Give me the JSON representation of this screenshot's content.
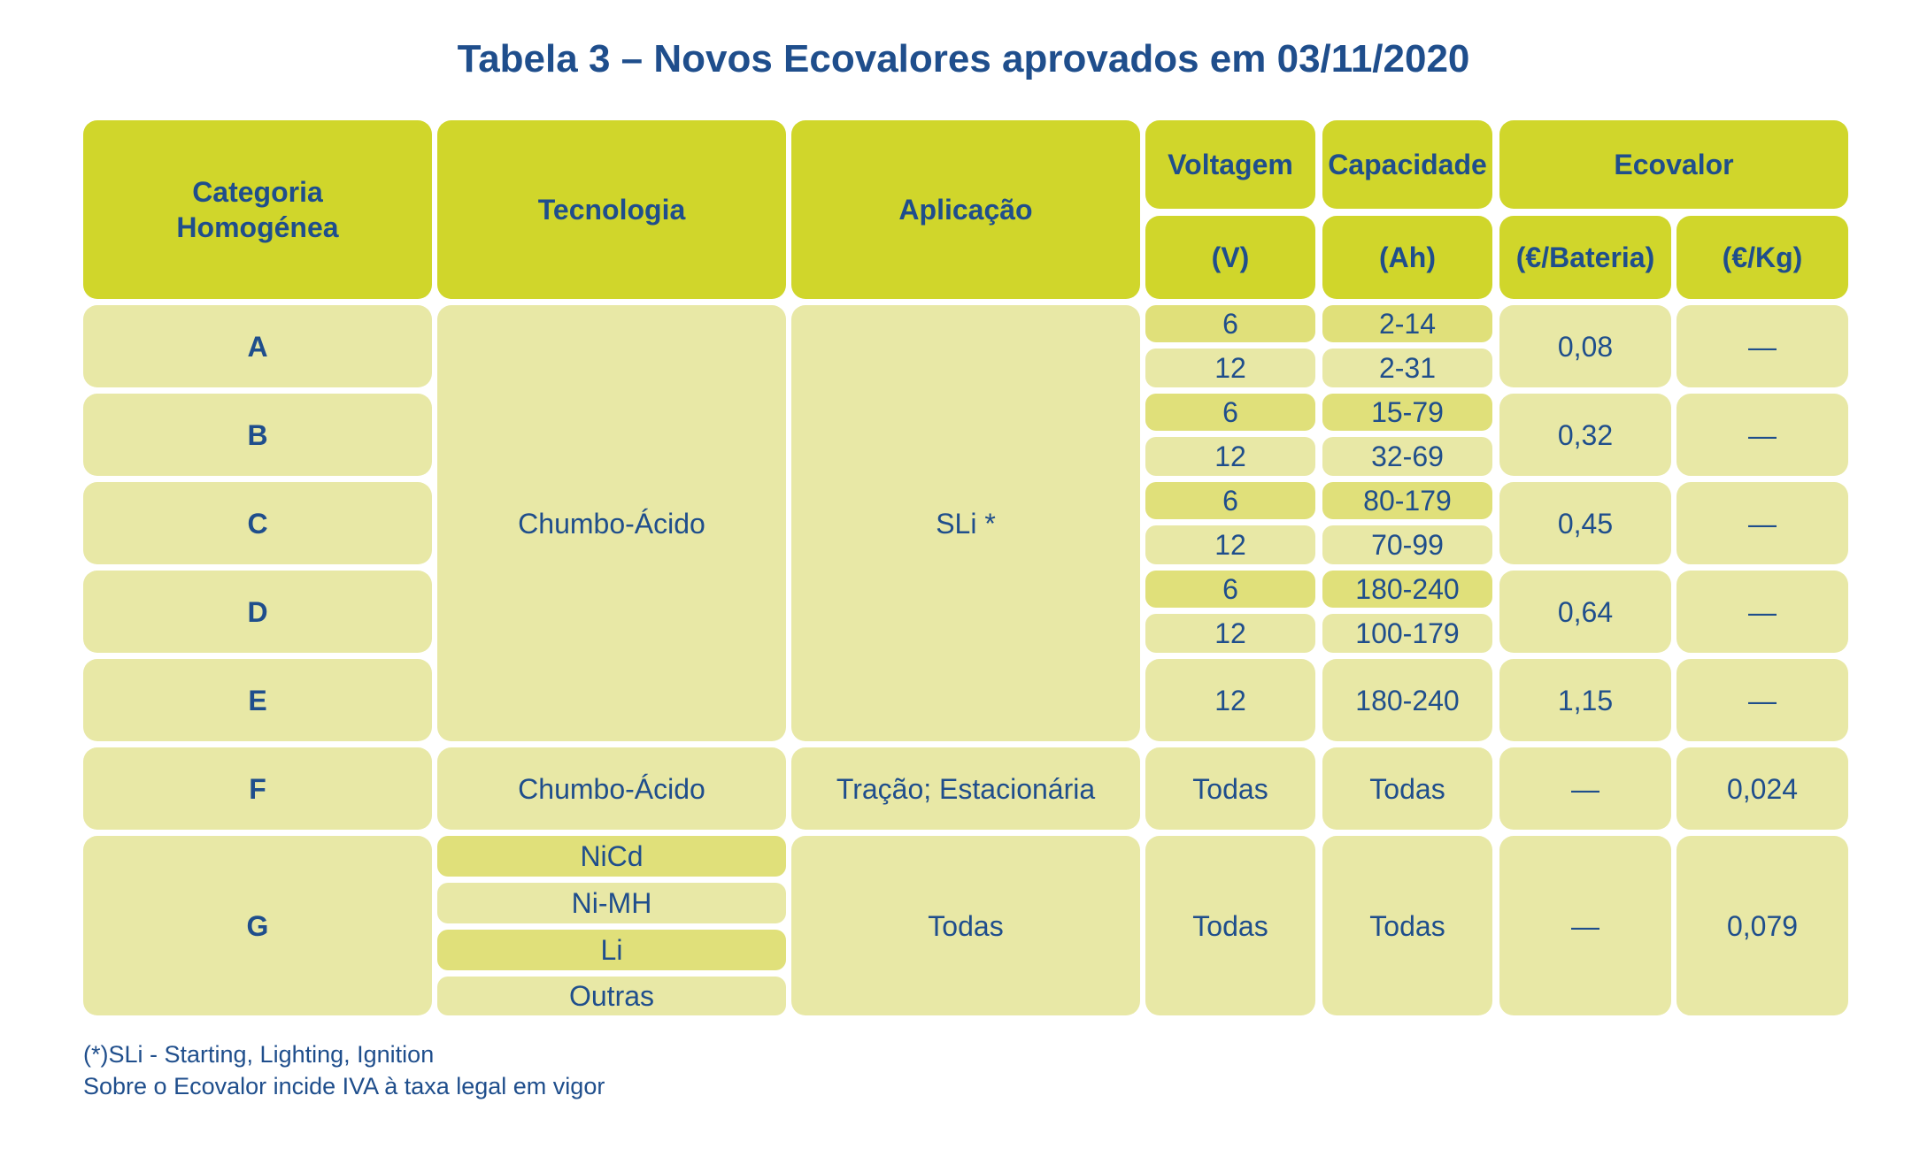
{
  "title": "Tabela 3 – Novos Ecovalores aprovados em 03/11/2020",
  "headers": {
    "categoria": "Categoria\nHomogénea",
    "tecnologia": "Tecnologia",
    "aplicacao": "Aplicação",
    "voltagem": "Voltagem",
    "voltagem_unit": "(V)",
    "capacidade": "Capacidade",
    "capacidade_unit": "(Ah)",
    "ecovalor": "Ecovalor",
    "ecovalor_bateria": "(€/Bateria)",
    "ecovalor_kg": "(€/Kg)"
  },
  "rows": {
    "A": {
      "cat": "A",
      "v1": "6",
      "c1": "2-14",
      "v2": "12",
      "c2": "2-31",
      "bat": "0,08",
      "kg": "—"
    },
    "B": {
      "cat": "B",
      "v1": "6",
      "c1": "15-79",
      "v2": "12",
      "c2": "32-69",
      "bat": "0,32",
      "kg": "—"
    },
    "C": {
      "cat": "C",
      "v1": "6",
      "c1": "80-179",
      "v2": "12",
      "c2": "70-99",
      "bat": "0,45",
      "kg": "—"
    },
    "D": {
      "cat": "D",
      "v1": "6",
      "c1": "180-240",
      "v2": "12",
      "c2": "100-179",
      "bat": "0,64",
      "kg": "—"
    },
    "E": {
      "cat": "E",
      "v": "12",
      "c": "180-240",
      "bat": "1,15",
      "kg": "—"
    },
    "F": {
      "cat": "F",
      "tec": "Chumbo-Ácido",
      "apl": "Tração; Estacionária",
      "v": "Todas",
      "c": "Todas",
      "bat": "—",
      "kg": "0,024"
    },
    "G": {
      "cat": "G",
      "tec": [
        "NiCd",
        "Ni-MH",
        "Li",
        "Outras"
      ],
      "apl": "Todas",
      "v": "Todas",
      "c": "Todas",
      "bat": "—",
      "kg": "0,079"
    }
  },
  "merged": {
    "tecnologia_ae": "Chumbo-Ácido",
    "aplicacao_ae": "SLi *"
  },
  "notes": [
    "(*)SLi - Starting, Lighting, Ignition",
    "Sobre o Ecovalor incide IVA à taxa legal em vigor"
  ],
  "colors": {
    "header": "#d0d62b",
    "cell_light": "#e8e8a6",
    "cell_dark": "#e0e07a",
    "text": "#1f4e8c"
  }
}
